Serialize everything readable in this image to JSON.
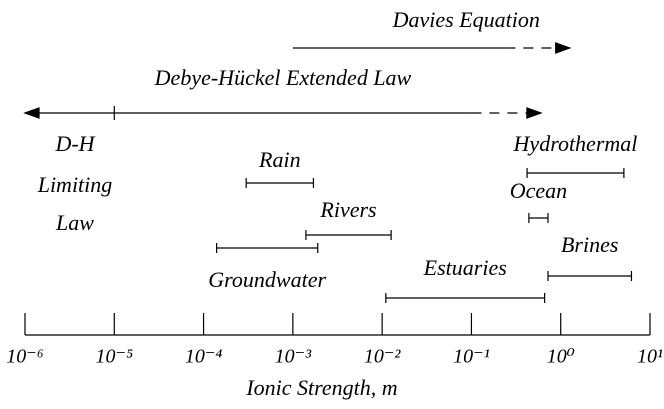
{
  "chart_data": {
    "type": "range",
    "x_label": "Ionic Strength,  m",
    "log_x": true,
    "xlim": [
      1e-06,
      10
    ],
    "xticks": [
      {
        "value": 1e-06,
        "label": "10⁻⁶"
      },
      {
        "value": 1e-05,
        "label": "10⁻⁵"
      },
      {
        "value": 0.0001,
        "label": "10⁻⁴"
      },
      {
        "value": 0.001,
        "label": "10⁻³"
      },
      {
        "value": 0.01,
        "label": "10⁻²"
      },
      {
        "value": 0.1,
        "label": "10⁻¹"
      },
      {
        "value": 1,
        "label": "10⁰"
      },
      {
        "value": 10,
        "label": "10¹"
      }
    ],
    "ranges": [
      {
        "name": "Rain",
        "low": 0.0003,
        "high": 0.0017
      },
      {
        "name": "Rivers",
        "low": 0.0014,
        "high": 0.0126
      },
      {
        "name": "Groundwater",
        "low": 0.00014,
        "high": 0.0019
      },
      {
        "name": "Estuaries",
        "low": 0.011,
        "high": 0.66
      },
      {
        "name": "Brines",
        "low": 0.72,
        "high": 6.2
      },
      {
        "name": "Ocean",
        "low": 0.44,
        "high": 0.72
      },
      {
        "name": "Hydrothermal",
        "low": 0.42,
        "high": 5.1
      }
    ],
    "arrows": [
      {
        "name": "Davies Equation",
        "start": 0.001,
        "solid_end": 0.24,
        "end": 1.26,
        "double_headed": false
      },
      {
        "name": "Debye-Hückel Extended Law",
        "start": 1e-06,
        "solid_end": 0.1,
        "end": 0.6,
        "double_headed": true,
        "marker": 1e-05
      }
    ],
    "annotation_lines": [
      "D-H",
      "Limiting",
      "Law"
    ]
  }
}
